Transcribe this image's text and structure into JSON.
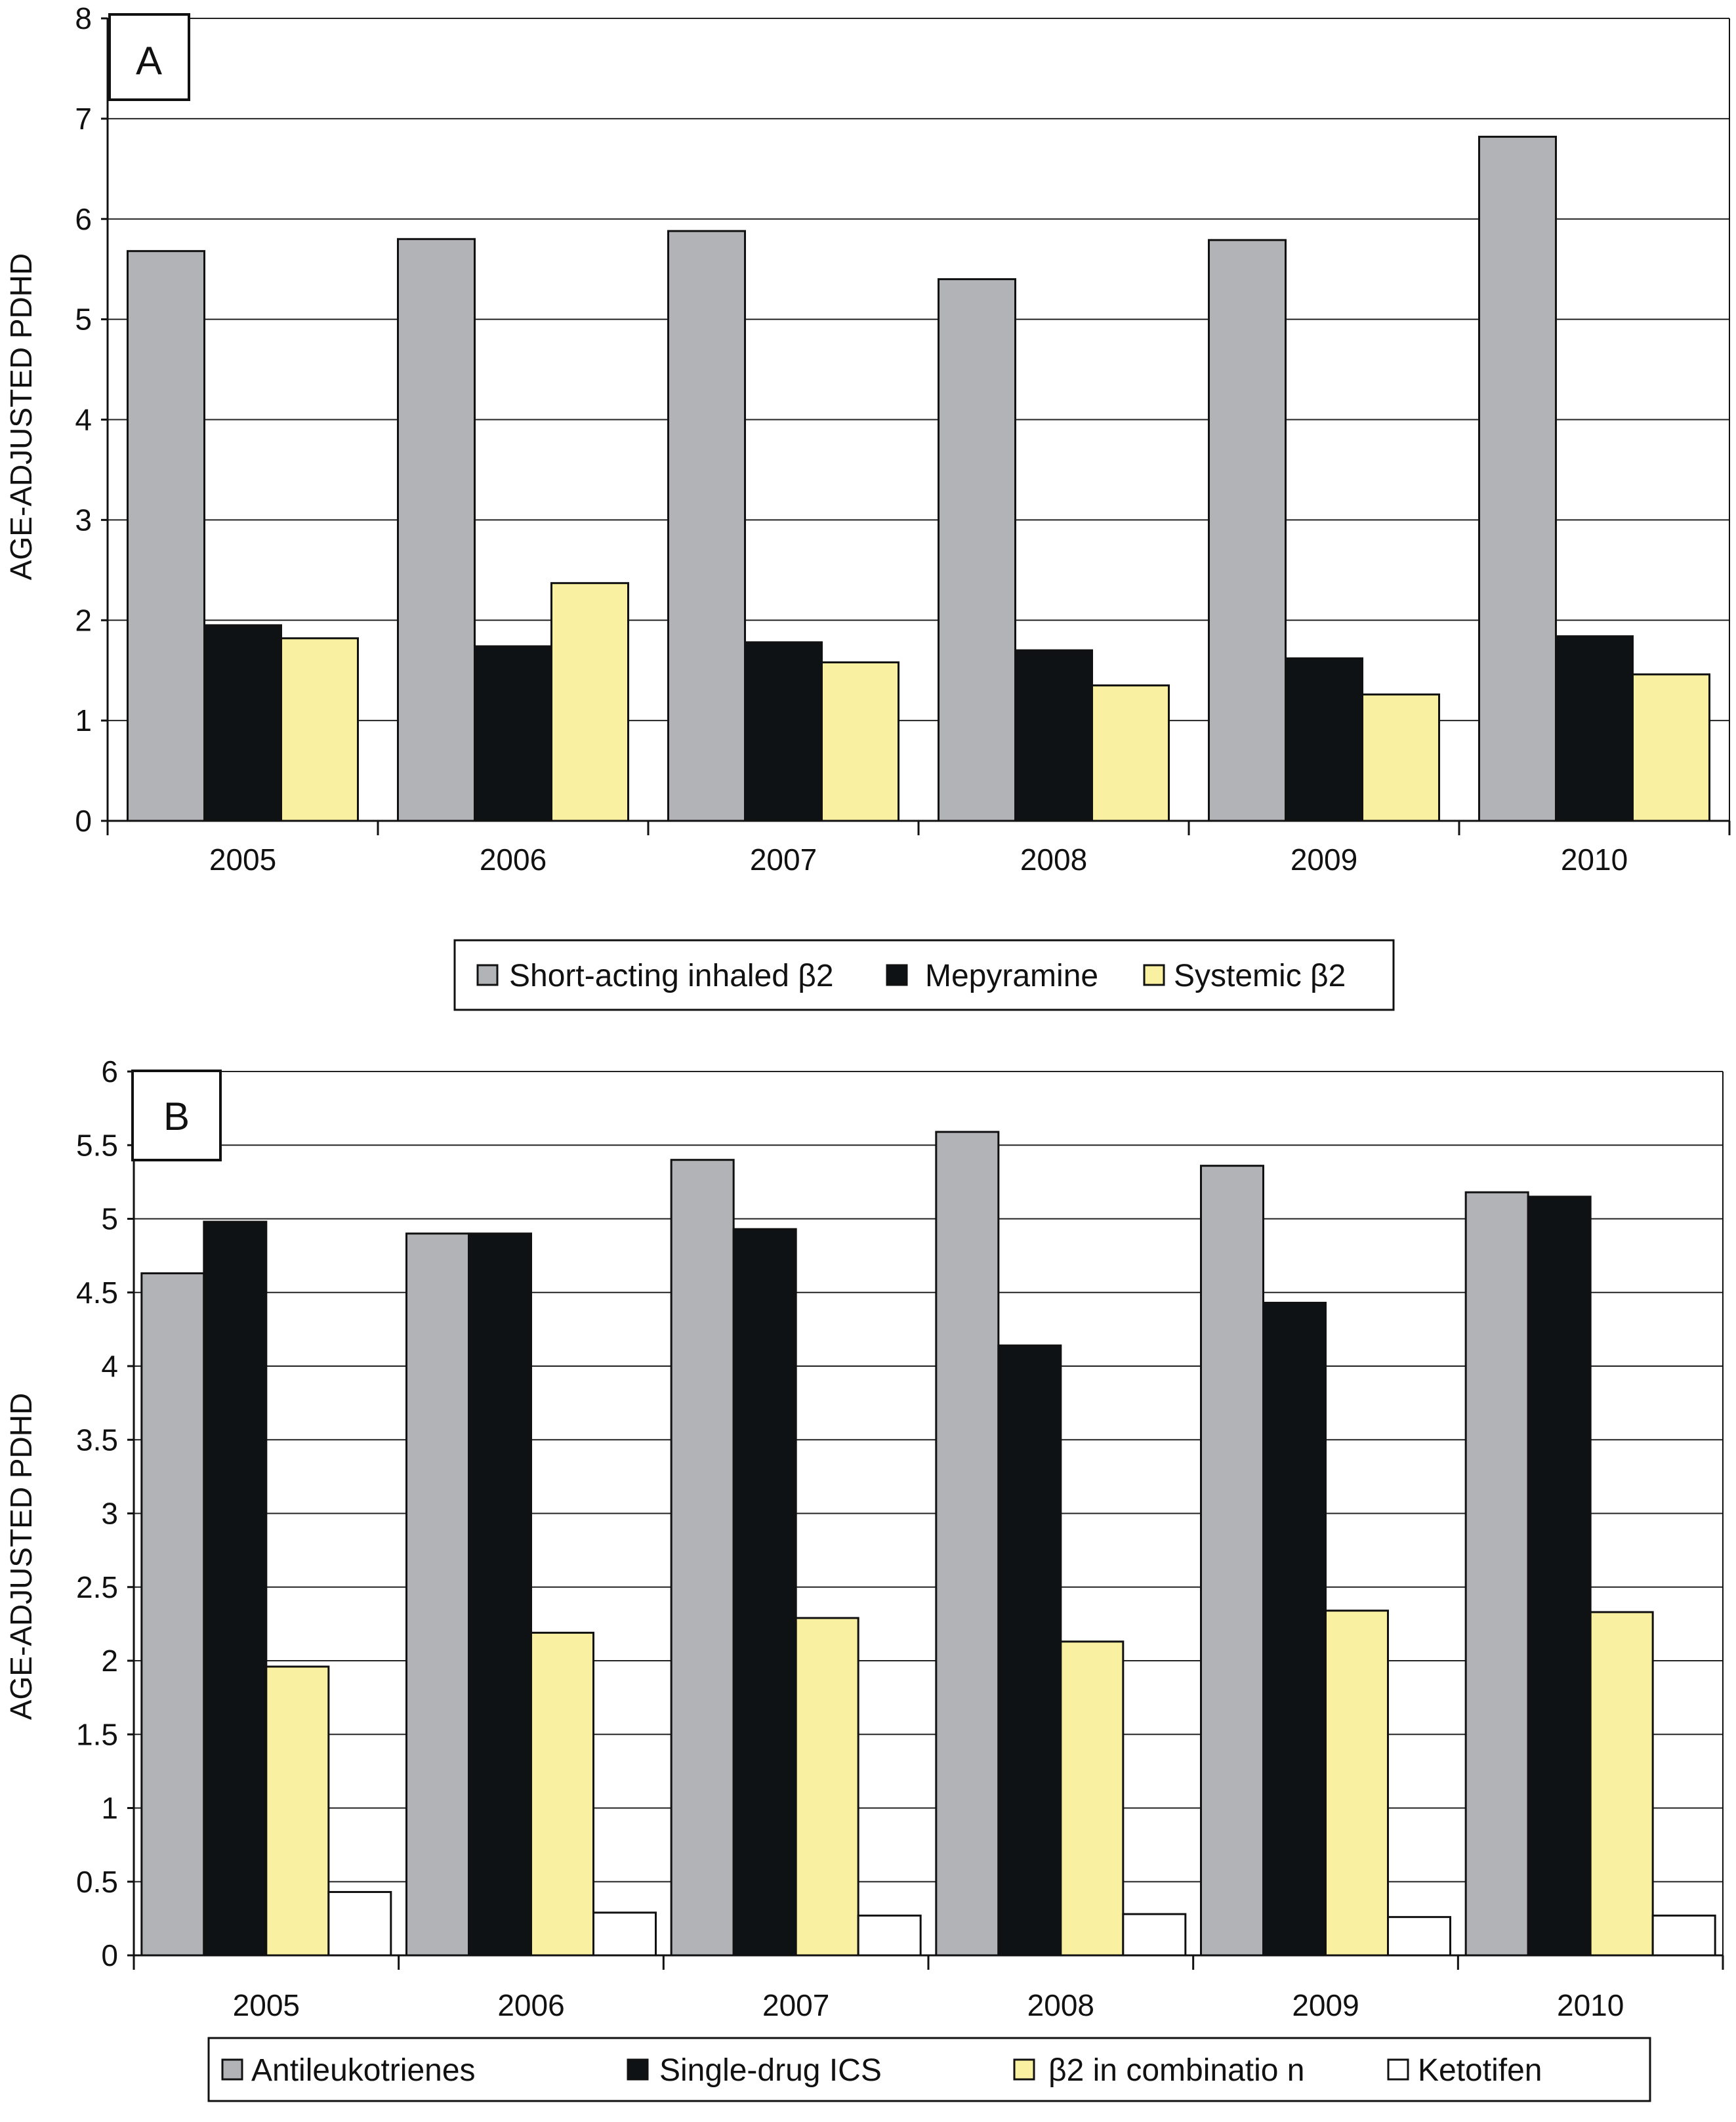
{
  "colors": {
    "gray": "#b1b3b6",
    "black": "#0f1214",
    "yellow": "#f9f1a1",
    "white": "#ffffff"
  },
  "chart_data": [
    {
      "type": "bar",
      "panel_label": "A",
      "categories": [
        "2005",
        "2006",
        "2007",
        "2008",
        "2009",
        "2010"
      ],
      "ylabel": "AGE-ADJUSTED PDHD",
      "ylim": [
        0,
        8
      ],
      "yticks": [
        "0",
        "1",
        "2",
        "3",
        "4",
        "5",
        "6",
        "7",
        "8"
      ],
      "grid": true,
      "legend_position": "bottom",
      "series": [
        {
          "name": "Short-acting inhaled β2",
          "color": "#b1b3b6",
          "values": [
            5.68,
            5.8,
            5.88,
            5.4,
            5.79,
            6.82
          ]
        },
        {
          "name": "Mepyramine",
          "color": "#0f1214",
          "values": [
            1.95,
            1.74,
            1.78,
            1.7,
            1.62,
            1.84
          ]
        },
        {
          "name": "Systemic β2",
          "color": "#f9f1a1",
          "values": [
            1.82,
            2.37,
            1.58,
            1.35,
            1.26,
            1.46
          ]
        }
      ]
    },
    {
      "type": "bar",
      "panel_label": "B",
      "categories": [
        "2005",
        "2006",
        "2007",
        "2008",
        "2009",
        "2010"
      ],
      "ylabel": "AGE-ADJUSTED PDHD",
      "ylim": [
        0,
        6
      ],
      "yticks": [
        "0",
        "0.5",
        "1",
        "1.5",
        "2",
        "2.5",
        "3",
        "3.5",
        "4",
        "4.5",
        "5",
        "5.5",
        "6"
      ],
      "grid": true,
      "legend_position": "bottom",
      "series": [
        {
          "name": "Antileukotrienes",
          "color": "#b1b3b6",
          "values": [
            4.63,
            4.9,
            5.4,
            5.59,
            5.36,
            5.18
          ]
        },
        {
          "name": "Single-drug ICS",
          "color": "#0f1214",
          "values": [
            4.98,
            4.9,
            4.93,
            4.14,
            4.43,
            5.15
          ]
        },
        {
          "name": "β2 in combinatio n",
          "color": "#f9f1a1",
          "values": [
            1.96,
            2.19,
            2.29,
            2.13,
            2.34,
            2.33
          ]
        },
        {
          "name": "Ketotifen",
          "color": "#ffffff",
          "values": [
            0.43,
            0.29,
            0.27,
            0.28,
            0.26,
            0.27
          ]
        }
      ]
    }
  ]
}
